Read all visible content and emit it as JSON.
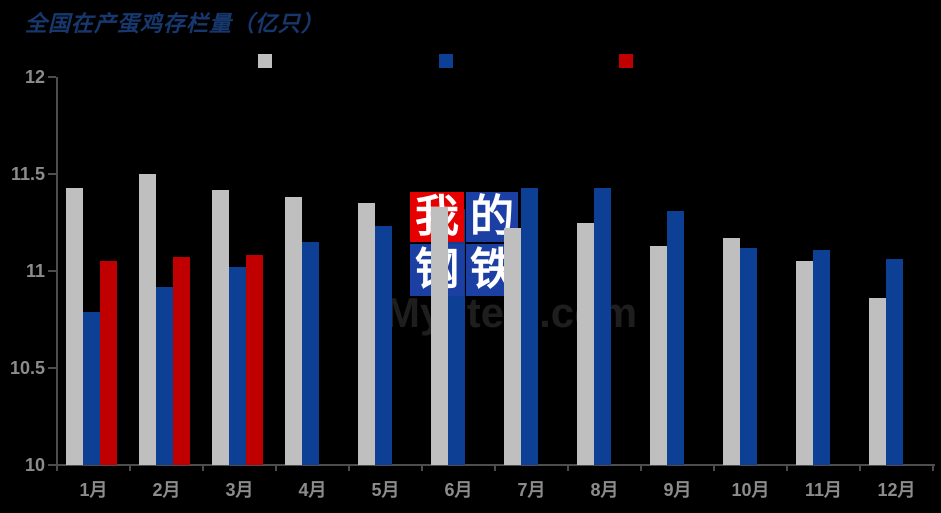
{
  "title": "全国在产蛋鸡存栏量（亿只）",
  "colors": {
    "background": "#000000",
    "title": "#17386E",
    "axis": "#4D4D4D",
    "axis_label": "#8C8C8C",
    "gray_series": "#BFBFBF",
    "blue_series": "#0D3F94",
    "red_series": "#C00000",
    "watermark_red": "#E60000",
    "watermark_blue": "#1C3FA4",
    "watermark_text_color": "#1E1E1E"
  },
  "legend": {
    "swatches": [
      {
        "name": "gray",
        "color": "#BFBFBF"
      },
      {
        "name": "blue",
        "color": "#0D3F94"
      },
      {
        "name": "red",
        "color": "#C00000"
      }
    ]
  },
  "watermark": {
    "chars": [
      "我",
      "的",
      "钢",
      "铁"
    ],
    "text": "Mysteel.com"
  },
  "chart_data": {
    "type": "bar",
    "title": "全国在产蛋鸡存栏量（亿只）",
    "xlabel": "",
    "ylabel": "",
    "ylim": [
      10,
      12
    ],
    "ytick_labels": [
      "12",
      "11.5",
      "11",
      "10.5",
      "10"
    ],
    "ytick_values": [
      12,
      11.5,
      11,
      10.5,
      10
    ],
    "grid": false,
    "legend_position": "top",
    "categories": [
      "1月",
      "2月",
      "3月",
      "4月",
      "5月",
      "6月",
      "7月",
      "8月",
      "9月",
      "10月",
      "11月",
      "12月"
    ],
    "series": [
      {
        "name": "gray-series",
        "color": "#BFBFBF",
        "values": [
          11.43,
          11.5,
          11.42,
          11.38,
          11.35,
          11.33,
          11.22,
          11.25,
          11.13,
          11.17,
          11.05,
          10.86
        ]
      },
      {
        "name": "blue-series",
        "color": "#0D3F94",
        "values": [
          10.79,
          10.92,
          11.02,
          11.15,
          11.23,
          11.32,
          11.43,
          11.43,
          11.31,
          11.12,
          11.11,
          11.06
        ]
      },
      {
        "name": "red-series",
        "color": "#C00000",
        "values": [
          11.05,
          11.07,
          11.08,
          null,
          null,
          null,
          null,
          null,
          null,
          null,
          null,
          null
        ]
      }
    ]
  }
}
